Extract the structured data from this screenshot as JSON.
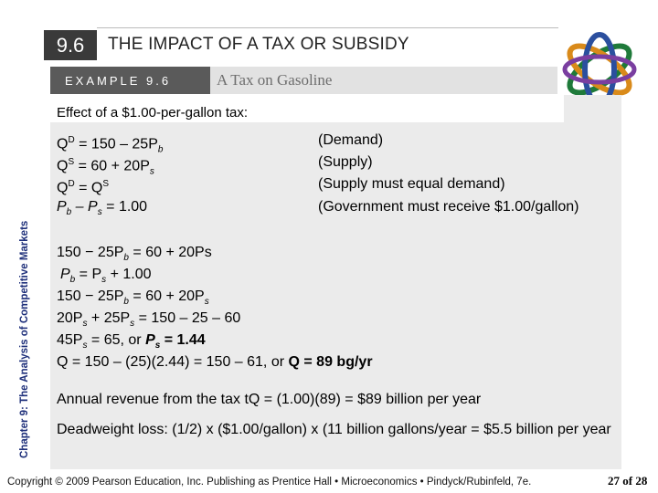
{
  "header": {
    "section_number": "9.6",
    "title": "THE IMPACT OF A TAX OR SUBSIDY",
    "example_label": "EXAMPLE 9.6",
    "example_title": "A Tax on Gasoline"
  },
  "side_label": "Chapter 9:  The Analysis of Competitive Markets",
  "intro": "Effect of a $1.00-per-gallon tax:",
  "equations": {
    "row1": {
      "a": "Q",
      "a_sup": "D",
      "b": " = 150 – 25P",
      "b_sub": "b",
      "note": "(Demand)"
    },
    "row2": {
      "a": "Q",
      "a_sup": "S",
      "b": " = 60 + 20P",
      "b_sub": "s",
      "note": "(Supply)"
    },
    "row3": {
      "a": "Q",
      "a_sup": "D",
      "b": " = Q",
      "b_sup": "S",
      "note": "(Supply must equal demand)"
    },
    "row4": {
      "a": "P",
      "a_sub": "b",
      "b": " – P",
      "b_sub": "s",
      "c": " = 1.00",
      "note": "(Government must receive $1.00/gallon)"
    }
  },
  "steps": {
    "s1": {
      "a": "150 − 25P",
      "a_sub": "b",
      "b": " = 60 + 20Ps"
    },
    "s2": {
      "a": "P",
      "a_sub": "b",
      "b": " = P",
      "b_sub": "s",
      "c": " + 1.00"
    },
    "s3": {
      "a": "150 − 25P",
      "a_sub": "b",
      "b": " = 60 + 20P",
      "b_sub": "s"
    },
    "s4": {
      "a": "20P",
      "a_sub": "s",
      "b": " + 25P",
      "b_sub": "s",
      "c": " = 150 – 25 – 60"
    },
    "s5": {
      "a": "45P",
      "a_sub": "s",
      "b": " = 65, or ",
      "c": "P",
      "c_sub": "s",
      "d": " = 1.44"
    },
    "s6": {
      "a": "Q = 150 – (25)(2.44) = 150 – 61, or ",
      "b": "Q = 89 bg/yr"
    }
  },
  "revenue": "Annual revenue from the tax tQ = (1.00)(89) = $89 billion per year",
  "deadweight": "Deadweight loss: (1/2) x ($1.00/gallon) x (11 billion gallons/year = $5.5 billion per year",
  "footer": {
    "copyright": "Copyright © 2009 Pearson Education, Inc. Publishing as Prentice Hall • Microeconomics • Pindyck/Rubinfeld, 7e.",
    "page": "27 of 28"
  },
  "colors": {
    "side_label": "#1e2f7a",
    "section_box": "#3a3a3a",
    "content_bg": "#ebebeb"
  },
  "icons": {
    "logo": "interlocking-rings-logo"
  }
}
